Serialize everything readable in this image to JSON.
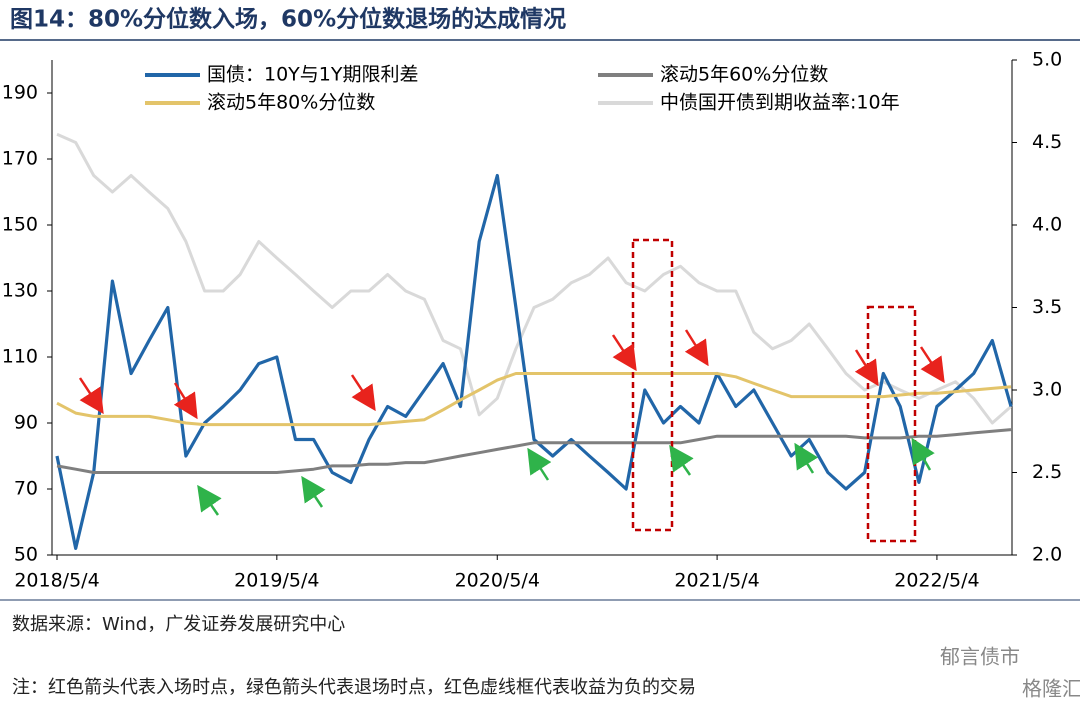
{
  "chart_data": {
    "type": "line",
    "title": "图14：80%分位数入场，60%分位数退场的达成情况",
    "x": [
      "2018/5/4",
      "2018/6/4",
      "2018/7/4",
      "2018/8/4",
      "2018/9/4",
      "2018/10/4",
      "2018/11/4",
      "2018/12/4",
      "2019/1/4",
      "2019/2/4",
      "2019/3/4",
      "2019/4/4",
      "2019/5/4",
      "2019/6/4",
      "2019/7/4",
      "2019/8/4",
      "2019/9/4",
      "2019/10/4",
      "2019/11/4",
      "2019/12/4",
      "2020/1/4",
      "2020/2/4",
      "2020/3/4",
      "2020/4/4",
      "2020/5/4",
      "2020/6/4",
      "2020/7/4",
      "2020/8/4",
      "2020/9/4",
      "2020/10/4",
      "2020/11/4",
      "2020/12/4",
      "2021/1/4",
      "2021/2/4",
      "2021/3/4",
      "2021/4/4",
      "2021/5/4",
      "2021/6/4",
      "2021/7/4",
      "2021/8/4",
      "2021/9/4",
      "2021/10/4",
      "2021/11/4",
      "2021/12/4",
      "2022/1/4",
      "2022/2/4",
      "2022/3/4",
      "2022/4/4",
      "2022/5/4",
      "2022/6/4",
      "2022/7/4",
      "2022/8/4",
      "2022/9/4"
    ],
    "xlim": [
      "2018/5/4",
      "2022/9/4"
    ],
    "xticks": [
      "2018/5/4",
      "2019/5/4",
      "2020/5/4",
      "2021/5/4",
      "2022/5/4"
    ],
    "ylim": [
      50,
      200
    ],
    "yticks": [
      50,
      70,
      90,
      110,
      130,
      150,
      170,
      190
    ],
    "y2lim": [
      2,
      5
    ],
    "y2ticks": [
      {
        "value": 2,
        "label": "2.0"
      },
      {
        "value": 2.5,
        "label": "2.5"
      },
      {
        "value": 3,
        "label": "3.0"
      },
      {
        "value": 3.5,
        "label": "3.5"
      },
      {
        "value": 4,
        "label": "4.0"
      },
      {
        "value": 4.5,
        "label": "4.5"
      },
      {
        "value": 5,
        "label": "5.0"
      }
    ],
    "legend": "top",
    "series": [
      {
        "name": "国债：10Y与1Y期限利差",
        "color": "#2166a8",
        "values": [
          80,
          52,
          75,
          133,
          105,
          115,
          125,
          80,
          90,
          95,
          100,
          108,
          110,
          85,
          85,
          75,
          72,
          85,
          95,
          92,
          100,
          108,
          95,
          145,
          165,
          125,
          85,
          80,
          85,
          80,
          75,
          70,
          100,
          90,
          95,
          90,
          105,
          95,
          100,
          90,
          80,
          85,
          75,
          70,
          75,
          105,
          95,
          72,
          95,
          100,
          105,
          115,
          95
        ]
      },
      {
        "name": "滚动5年60%分位数",
        "color": "#7f7f7f",
        "values": [
          77,
          76,
          75,
          75,
          75,
          75,
          75,
          75,
          75,
          75,
          75,
          75,
          75,
          75.5,
          76,
          77,
          77,
          77.5,
          77.5,
          78,
          78,
          79,
          80,
          81,
          82,
          83,
          84,
          84,
          84,
          84,
          84,
          84,
          84,
          84,
          84,
          85,
          86,
          86,
          86,
          86,
          86,
          86,
          86,
          86,
          85.5,
          85.5,
          85.5,
          86,
          86,
          86.5,
          87,
          87.5,
          88
        ]
      },
      {
        "name": "滚动5年80%分位数",
        "color": "#e3c46a",
        "values": [
          96,
          93,
          92,
          92,
          92,
          92,
          91,
          90,
          89.5,
          89.5,
          89.5,
          89.5,
          89.5,
          89.5,
          89.5,
          89.5,
          89.5,
          89.5,
          90,
          90.5,
          91,
          94,
          97,
          100,
          103,
          105,
          105,
          105,
          105,
          105,
          105,
          105,
          105,
          105,
          105,
          105,
          105,
          104,
          102,
          100,
          98,
          98,
          98,
          98,
          98,
          98,
          98.5,
          99,
          99,
          99.5,
          100,
          100.5,
          101
        ]
      },
      {
        "name": "中债国开债到期收益率:10年",
        "color": "#d9d9d9",
        "axis": "y2",
        "values": [
          4.55,
          4.5,
          4.3,
          4.2,
          4.3,
          4.2,
          4.1,
          3.9,
          3.6,
          3.6,
          3.7,
          3.9,
          3.8,
          3.7,
          3.6,
          3.5,
          3.6,
          3.6,
          3.7,
          3.6,
          3.55,
          3.3,
          3.25,
          2.85,
          2.95,
          3.25,
          3.5,
          3.55,
          3.65,
          3.7,
          3.8,
          3.65,
          3.6,
          3.7,
          3.75,
          3.65,
          3.6,
          3.6,
          3.35,
          3.25,
          3.3,
          3.4,
          3.25,
          3.1,
          3.0,
          3.05,
          3.0,
          2.95,
          3.0,
          3.05,
          2.95,
          2.8,
          2.9
        ]
      }
    ],
    "source": "数据来源：Wind，广发证券发展研究中心",
    "note": "注：红色箭头代表入场时点，绿色箭头代表退场时点，红色虚线框代表收益为负的交易",
    "watermark": [
      "郁言债市",
      "格隆汇"
    ]
  }
}
